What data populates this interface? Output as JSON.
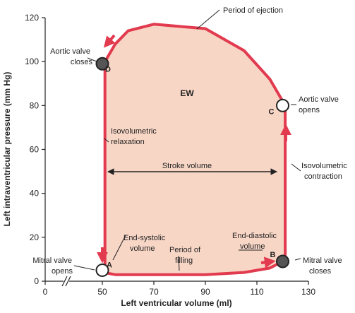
{
  "chart_data": {
    "type": "line",
    "xlabel": "Left ventricular volume (ml)",
    "ylabel": "Left intraventricular pressure (mm Hg)",
    "xlim": [
      0,
      130
    ],
    "ylim": [
      0,
      120
    ],
    "x_axis_break": true,
    "x_ticks": [
      0,
      50,
      70,
      90,
      110,
      130
    ],
    "y_ticks": [
      0,
      20,
      40,
      60,
      80,
      100,
      120
    ],
    "series": [
      {
        "x": [
          50,
          50.5,
          55,
          70,
          90,
          105,
          115,
          120,
          121,
          121,
          120,
          115,
          105,
          90,
          70,
          60,
          55,
          51,
          51,
          51
        ],
        "y": [
          5,
          4,
          3,
          3,
          3,
          4,
          6,
          9,
          9,
          80,
          82,
          92,
          105,
          115,
          117,
          114,
          108,
          100,
          99,
          5
        ]
      }
    ],
    "points": [
      {
        "label": "A",
        "x": 50,
        "y": 5,
        "filled": false
      },
      {
        "label": "B",
        "x": 120,
        "y": 9,
        "filled": true
      },
      {
        "label": "C",
        "x": 120,
        "y": 80,
        "filled": false
      },
      {
        "label": "D",
        "x": 50,
        "y": 99,
        "filled": true
      }
    ],
    "area_label": "EW",
    "stroke_volume": {
      "label": "Stroke volume",
      "x": [
        51,
        119
      ],
      "y": 50
    },
    "annotations": [
      {
        "id": "period-of-ejection",
        "lines": [
          "Period of ejection"
        ]
      },
      {
        "id": "aortic-valve-closes",
        "lines": [
          "Aortic valve",
          "closes"
        ]
      },
      {
        "id": "aortic-valve-opens",
        "lines": [
          "Aortic valve",
          "opens"
        ]
      },
      {
        "id": "isovolumetric-relaxation",
        "lines": [
          "Isovolumetric",
          "relaxation"
        ]
      },
      {
        "id": "isovolumetric-contraction",
        "lines": [
          "Isovolumetric",
          "contraction"
        ]
      },
      {
        "id": "end-systolic-volume",
        "lines": [
          "End-systolic",
          "volume"
        ]
      },
      {
        "id": "end-diastolic-volume",
        "lines": [
          "End-diastolic",
          "volume"
        ]
      },
      {
        "id": "period-of-filling",
        "lines": [
          "Period of",
          "filling"
        ]
      },
      {
        "id": "mitral-valve-opens",
        "lines": [
          "Mitral valve",
          "opens"
        ]
      },
      {
        "id": "mitral-valve-closes",
        "lines": [
          "Mitral valve",
          "closes"
        ]
      }
    ],
    "colors": {
      "loop": "#e23a4e",
      "fill": "#f8d6c6",
      "point_fill": "#555555",
      "axis": "#222222"
    }
  }
}
